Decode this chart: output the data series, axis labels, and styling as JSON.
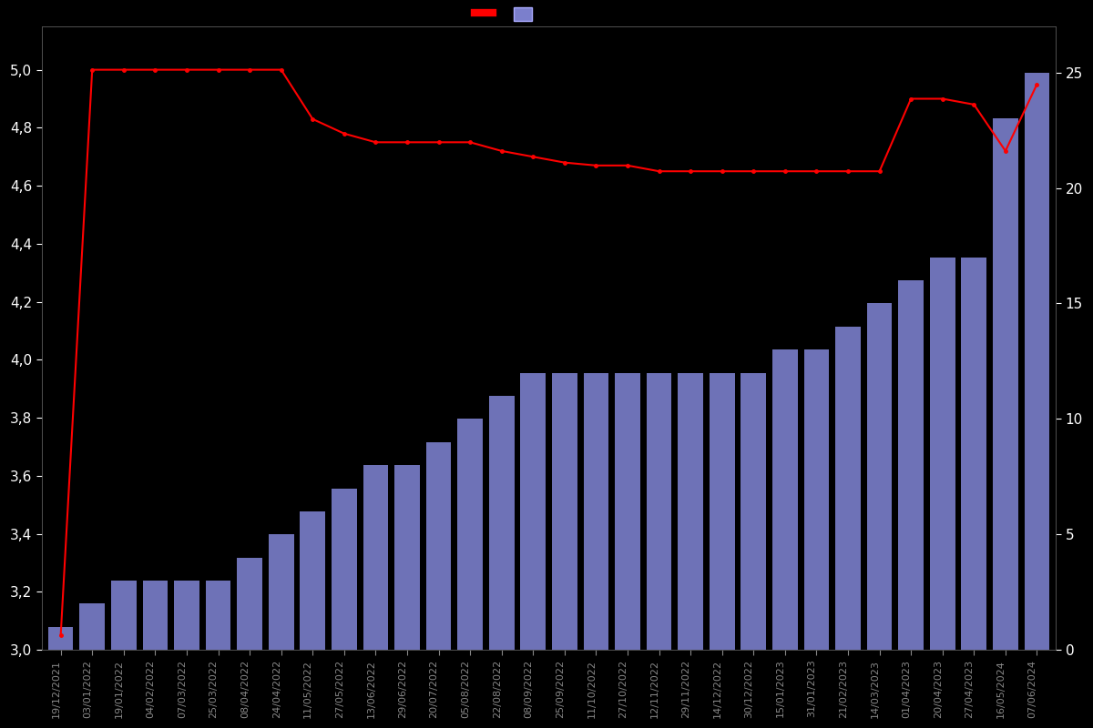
{
  "dates": [
    "19/12/2021",
    "03/01/2022",
    "19/01/2022",
    "04/02/2022",
    "07/03/2022",
    "25/03/2022",
    "08/04/2022",
    "24/04/2022",
    "11/05/2022",
    "27/05/2022",
    "13/06/2022",
    "29/06/2022",
    "20/07/2022",
    "05/08/2022",
    "22/08/2022",
    "08/09/2022",
    "25/09/2022",
    "11/10/2022",
    "27/10/2022",
    "12/11/2022",
    "29/11/2022",
    "14/12/2022",
    "30/12/2022",
    "15/01/2023",
    "31/01/2023",
    "21/02/2023",
    "14/03/2023",
    "01/04/2023",
    "20/04/2023",
    "27/04/2023",
    "16/05/2024",
    "07/06/2024"
  ],
  "bar_values": [
    1,
    2,
    3,
    3,
    3,
    3,
    4,
    5,
    6,
    7,
    8,
    8,
    9,
    10,
    11,
    12,
    12,
    12,
    12,
    12,
    12,
    12,
    12,
    13,
    13,
    14,
    15,
    16,
    17,
    17,
    23,
    25
  ],
  "line_values": [
    3.05,
    5.0,
    5.0,
    5.0,
    5.0,
    5.0,
    5.0,
    5.0,
    4.83,
    4.78,
    4.75,
    4.75,
    4.75,
    4.75,
    4.72,
    4.7,
    4.68,
    4.67,
    4.67,
    4.65,
    4.65,
    4.65,
    4.65,
    4.65,
    4.65,
    4.65,
    4.65,
    4.9,
    4.9,
    4.88,
    4.72,
    4.95
  ],
  "background_color": "#000000",
  "bar_color": "#7B7FCC",
  "line_color": "#FF0000",
  "left_ylim": [
    3.0,
    5.15
  ],
  "right_ylim": [
    0,
    27
  ],
  "left_yticks": [
    3.0,
    3.2,
    3.4,
    3.6,
    3.8,
    4.0,
    4.2,
    4.4,
    4.6,
    4.8,
    5.0
  ],
  "right_yticks": [
    0,
    5,
    10,
    15,
    20,
    25
  ],
  "left_tick_labels": [
    "3,0",
    "3,2",
    "3,4",
    "3,6",
    "3,8",
    "4,0",
    "4,2",
    "4,4",
    "4,6",
    "4,8",
    "5,0"
  ],
  "right_tick_labels": [
    "0",
    "5",
    "10",
    "15",
    "20",
    "25"
  ]
}
